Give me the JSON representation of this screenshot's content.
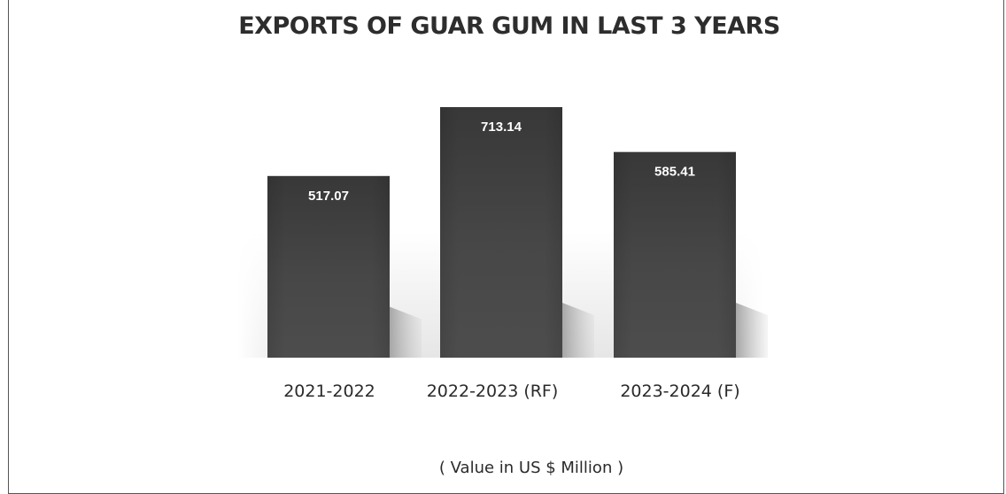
{
  "chart_data": {
    "type": "bar",
    "title": "EXPORTS OF GUAR GUM IN LAST 3 YEARS",
    "categories": [
      "2021-2022",
      "2022-2023 (RF)",
      "2023-2024 (F)"
    ],
    "values": [
      517.07,
      713.14,
      585.41
    ],
    "value_labels": [
      "517.07",
      "713.14",
      "585.41"
    ],
    "unit_note": "( Value in US $ Million )",
    "xlabel": "",
    "ylabel": "",
    "grid": false,
    "legend": "none",
    "colors": {
      "bar": "#454545",
      "bar_top": "#3a3a3a",
      "text_on_bar": "#ffffff",
      "shadow": "#bdbdbd"
    }
  }
}
